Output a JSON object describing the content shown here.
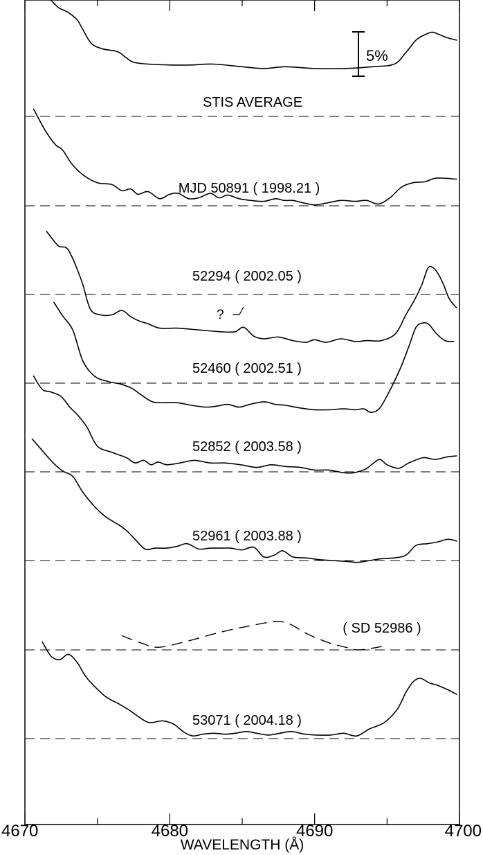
{
  "chart_data": {
    "type": "line",
    "xlabel": "WAVELENGTH (Å)",
    "ylabel": "",
    "title": "",
    "xlim": [
      4670,
      4700
    ],
    "x_ticks": [
      "4670",
      "4680",
      "4690",
      "4700"
    ],
    "x_tick_values": [
      4670,
      4680,
      4690,
      4700
    ],
    "y_units": "percent offset from each spectrum's dashed baseline",
    "scale_bar": {
      "label": "5%",
      "value": 5
    },
    "grid": false,
    "legend": "none",
    "series": [
      {
        "label": "STIS AVERAGE",
        "x": [
          4671.2,
          4671.7,
          4672.3,
          4673.0,
          4673.6,
          4674.0,
          4674.6,
          4675.4,
          4676.4,
          4677.0,
          4677.5,
          4678.5,
          4680.0,
          4681.5,
          4683.0,
          4685.0,
          4686.5,
          4688.0,
          4690.0,
          4692.0,
          4694.0,
          4695.5,
          4696.3,
          4697.0,
          4697.6,
          4698.1,
          4698.5,
          4699.1,
          4699.8
        ],
        "y": [
          14.4,
          13.3,
          12.3,
          11.7,
          10.9,
          9.8,
          8.2,
          7.6,
          7.3,
          6.6,
          6.1,
          5.9,
          5.8,
          5.8,
          5.9,
          5.6,
          5.4,
          5.6,
          5.4,
          5.4,
          5.6,
          5.9,
          7.2,
          8.6,
          9.2,
          9.5,
          9.3,
          8.9,
          8.6
        ]
      },
      {
        "label": "MJD 50891 ( 1998.21 )",
        "x": [
          4670.6,
          4671.4,
          4672.1,
          4672.6,
          4673.2,
          4674.0,
          4675.0,
          4676.0,
          4676.7,
          4677.3,
          4677.8,
          4678.5,
          4679.3,
          4680.0,
          4680.6,
          4681.3,
          4682.0,
          4682.8,
          4683.4,
          4684.0,
          4684.8,
          4685.6,
          4686.5,
          4687.3,
          4687.9,
          4688.5,
          4689.3,
          4690.0,
          4690.8,
          4691.8,
          4692.8,
          4693.6,
          4694.4,
          4695.2,
          4696.0,
          4696.8,
          4697.6,
          4698.3,
          4699.0,
          4699.8
        ],
        "y": [
          10.9,
          8.5,
          6.9,
          6.3,
          4.8,
          3.5,
          2.6,
          2.4,
          1.7,
          1.9,
          1.3,
          1.6,
          0.8,
          1.3,
          1.4,
          0.8,
          0.9,
          1.4,
          0.9,
          1.2,
          0.8,
          0.6,
          0.5,
          0.8,
          0.6,
          0.6,
          0.3,
          0.1,
          0.3,
          0.6,
          0.5,
          0.6,
          0.2,
          0.9,
          2.1,
          2.6,
          2.7,
          3.1,
          3.1,
          3.0
        ]
      },
      {
        "label": "52294 ( 2002.05 )",
        "x": [
          4671.5,
          4672.3,
          4673.0,
          4673.9,
          4674.5,
          4675.2,
          4676.0,
          4676.7,
          4677.3,
          4677.9,
          4678.5,
          4679.3,
          4680.5,
          4682.0,
          4683.5,
          4684.5,
          4685.1,
          4685.8,
          4686.5,
          4687.5,
          4688.5,
          4689.4,
          4690.0,
          4690.8,
          4691.8,
          4692.8,
          4693.6,
          4694.6,
          4695.6,
          4696.3,
          4696.9,
          4697.4,
          4697.8,
          4698.1,
          4698.5,
          4698.9,
          4699.3,
          4699.8
        ],
        "y": [
          7.1,
          5.5,
          5.0,
          1.6,
          -1.6,
          -2.3,
          -2.3,
          -1.8,
          -2.5,
          -3.0,
          -3.3,
          -3.8,
          -3.8,
          -4.0,
          -4.2,
          -4.2,
          -3.7,
          -4.7,
          -5.0,
          -4.8,
          -5.2,
          -5.4,
          -5.1,
          -5.4,
          -5.0,
          -5.3,
          -5.2,
          -5.2,
          -4.4,
          -2.3,
          -0.6,
          1.1,
          2.9,
          3.1,
          2.4,
          1.1,
          -0.5,
          -1.5
        ]
      },
      {
        "label": "52460 ( 2002.51 )",
        "x": [
          4672.0,
          4672.6,
          4673.3,
          4674.0,
          4674.8,
          4675.7,
          4676.6,
          4677.4,
          4678.0,
          4678.8,
          4679.5,
          4680.5,
          4681.5,
          4682.5,
          4683.2,
          4684.0,
          4684.8,
          4685.5,
          4686.5,
          4687.3,
          4688.0,
          4689.0,
          4690.0,
          4691.0,
          4692.0,
          4692.8,
          4693.4,
          4693.9,
          4694.5,
          4695.2,
          4695.9,
          4696.5,
          4697.0,
          4697.5,
          4697.9,
          4698.4,
          4699.0,
          4699.6
        ],
        "y": [
          9.1,
          7.6,
          6.0,
          2.5,
          0.8,
          0.2,
          -0.1,
          -0.6,
          -1.3,
          -2.1,
          -2.2,
          -2.2,
          -2.5,
          -2.7,
          -2.6,
          -2.4,
          -2.7,
          -2.4,
          -2.1,
          -2.4,
          -2.5,
          -2.8,
          -3.0,
          -3.0,
          -2.9,
          -3.0,
          -2.9,
          -3.3,
          -2.8,
          -0.8,
          1.6,
          4.1,
          6.3,
          6.8,
          6.6,
          5.6,
          4.8,
          4.7
        ]
      },
      {
        "label": "52852 ( 2003.58 )",
        "x": [
          4670.6,
          4671.2,
          4671.8,
          4672.5,
          4673.1,
          4673.7,
          4674.3,
          4675.0,
          4676.0,
          4677.0,
          4677.6,
          4678.2,
          4678.7,
          4679.2,
          4679.8,
          4680.7,
          4681.7,
          4682.8,
          4683.8,
          4684.9,
          4686.0,
          4687.0,
          4688.0,
          4689.0,
          4690.0,
          4691.0,
          4692.0,
          4692.7,
          4693.5,
          4694.0,
          4694.5,
          4695.0,
          4695.8,
          4696.5,
          4697.5,
          4698.3,
          4699.2,
          4699.8
        ],
        "y": [
          10.8,
          9.3,
          9.0,
          8.5,
          7.3,
          6.3,
          5.0,
          2.9,
          2.2,
          1.6,
          1.0,
          1.3,
          0.8,
          1.1,
          0.8,
          1.0,
          1.3,
          1.0,
          1.0,
          0.8,
          0.5,
          0.8,
          0.6,
          0.5,
          0.2,
          0.2,
          -0.1,
          -0.1,
          0.3,
          0.9,
          1.4,
          0.8,
          0.4,
          1.0,
          1.6,
          1.4,
          1.7,
          1.8
        ]
      },
      {
        "label": "52961 ( 2003.88 )",
        "x": [
          4670.5,
          4671.2,
          4671.9,
          4672.6,
          4673.3,
          4674.0,
          4674.8,
          4675.6,
          4676.4,
          4677.0,
          4677.6,
          4678.3,
          4679.0,
          4679.8,
          4680.5,
          4681.2,
          4682.0,
          4682.8,
          4683.6,
          4684.2,
          4685.0,
          4685.8,
          4686.5,
          4687.2,
          4687.8,
          4688.5,
          4689.4,
          4690.3,
          4691.2,
          4692.2,
          4693.0,
          4693.8,
          4694.6,
          4695.5,
          4696.3,
          4697.0,
          4697.8,
          4698.5,
          4699.2,
          4699.8
        ],
        "y": [
          13.7,
          12.4,
          11.1,
          10.1,
          9.5,
          7.7,
          6.1,
          4.9,
          4.1,
          3.4,
          2.4,
          1.3,
          1.4,
          1.4,
          1.6,
          1.9,
          1.3,
          1.4,
          1.4,
          1.4,
          1.2,
          1.5,
          0.4,
          0.6,
          1.1,
          0.4,
          0.3,
          0.1,
          0.0,
          -0.1,
          -0.2,
          0.0,
          0.2,
          0.3,
          0.6,
          1.7,
          1.9,
          2.1,
          2.4,
          2.2
        ]
      },
      {
        "label": "( SD 52986 )",
        "dashed": true,
        "x": [
          4676.7,
          4678.0,
          4679.2,
          4681.0,
          4683.5,
          4685.5,
          4687.3,
          4688.3,
          4689.5,
          4691.0,
          4692.4,
          4693.0,
          4694.0,
          4695.0
        ],
        "y": [
          1.6,
          0.8,
          0.3,
          0.9,
          2.0,
          2.7,
          3.2,
          2.9,
          1.8,
          0.8,
          0.2,
          0.0,
          0.2,
          0.5
        ]
      },
      {
        "label": "53071 ( 2004.18 )",
        "x": [
          4671.2,
          4671.8,
          4672.4,
          4673.0,
          4673.6,
          4674.2,
          4674.8,
          4675.6,
          4676.5,
          4677.3,
          4677.9,
          4678.6,
          4679.5,
          4680.3,
          4681.0,
          4681.6,
          4682.3,
          4683.0,
          4683.8,
          4684.5,
          4685.3,
          4686.0,
          4686.8,
          4687.6,
          4688.4,
          4689.3,
          4690.2,
          4691.1,
          4692.0,
          4692.9,
          4693.8,
          4694.8,
          4695.7,
          4696.3,
          4696.8,
          4697.3,
          4697.9,
          4698.5,
          4699.2,
          4699.8
        ],
        "y": [
          10.9,
          9.3,
          8.9,
          9.5,
          8.6,
          7.0,
          5.9,
          4.7,
          3.9,
          3.1,
          2.4,
          1.8,
          2.0,
          1.6,
          0.7,
          0.3,
          0.5,
          0.6,
          0.5,
          0.6,
          0.8,
          0.6,
          0.4,
          0.6,
          0.8,
          0.5,
          0.4,
          0.4,
          0.6,
          0.3,
          1.1,
          1.8,
          3.3,
          5.2,
          6.4,
          6.8,
          6.3,
          6.0,
          5.5,
          5.0
        ]
      }
    ],
    "annotations": [
      {
        "text": "?"
      }
    ]
  }
}
